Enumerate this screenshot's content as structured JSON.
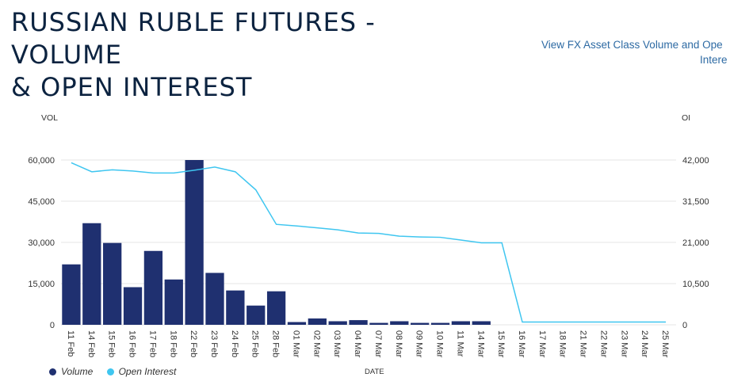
{
  "header": {
    "title_line1": "RUSSIAN RUBLE FUTURES - VOLUME",
    "title_line2": "& OPEN INTEREST",
    "link_line1": "View FX Asset Class Volume and Ope",
    "link_line2": "Intere"
  },
  "colors": {
    "volume": "#1f3070",
    "open_interest": "#3fc6f0",
    "grid": "#e6e6e6"
  },
  "chart_data": {
    "type": "bar",
    "title": "RUSSIAN RUBLE FUTURES - VOLUME & OPEN INTEREST",
    "xlabel": "DATE",
    "ylabel": "VOL",
    "y2label": "OI",
    "categories": [
      "11 Feb",
      "14 Feb",
      "15 Feb",
      "16 Feb",
      "17 Feb",
      "18 Feb",
      "22 Feb",
      "23 Feb",
      "24 Feb",
      "25 Feb",
      "28 Feb",
      "01 Mar",
      "02 Mar",
      "03 Mar",
      "04 Mar",
      "07 Mar",
      "08 Mar",
      "09 Mar",
      "10 Mar",
      "11 Mar",
      "14 Mar",
      "15 Mar",
      "16 Mar",
      "17 Mar",
      "18 Mar",
      "21 Mar",
      "22 Mar",
      "23 Mar",
      "24 Mar",
      "25 Mar"
    ],
    "ylim": [
      0,
      60000
    ],
    "yticks": [
      0,
      15000,
      30000,
      45000,
      60000
    ],
    "ytick_labels": [
      "0",
      "15,000",
      "30,000",
      "45,000",
      "60,000"
    ],
    "y2lim": [
      0,
      42000
    ],
    "y2ticks": [
      0,
      10500,
      21000,
      31500,
      42000
    ],
    "y2tick_labels": [
      "0",
      "10,500",
      "21,000",
      "31,500",
      "42,000"
    ],
    "series": [
      {
        "name": "Volume",
        "type": "bar",
        "values": [
          22000,
          37000,
          29800,
          13700,
          26900,
          16500,
          60000,
          18900,
          12500,
          7000,
          12200,
          1000,
          2300,
          1300,
          1700,
          700,
          1300,
          700,
          700,
          1300,
          1300,
          0,
          0,
          0,
          0,
          0,
          0,
          0,
          0,
          0
        ]
      },
      {
        "name": "Open Interest",
        "type": "line",
        "axis": "right",
        "values": [
          41300,
          39000,
          39500,
          39200,
          38700,
          38700,
          39400,
          40200,
          39000,
          34400,
          25600,
          25200,
          24700,
          24200,
          23400,
          23300,
          22600,
          22400,
          22300,
          21600,
          20900,
          20900,
          700,
          700,
          700,
          700,
          700,
          700,
          700,
          700
        ]
      }
    ],
    "legend": [
      "Volume",
      "Open Interest"
    ]
  }
}
